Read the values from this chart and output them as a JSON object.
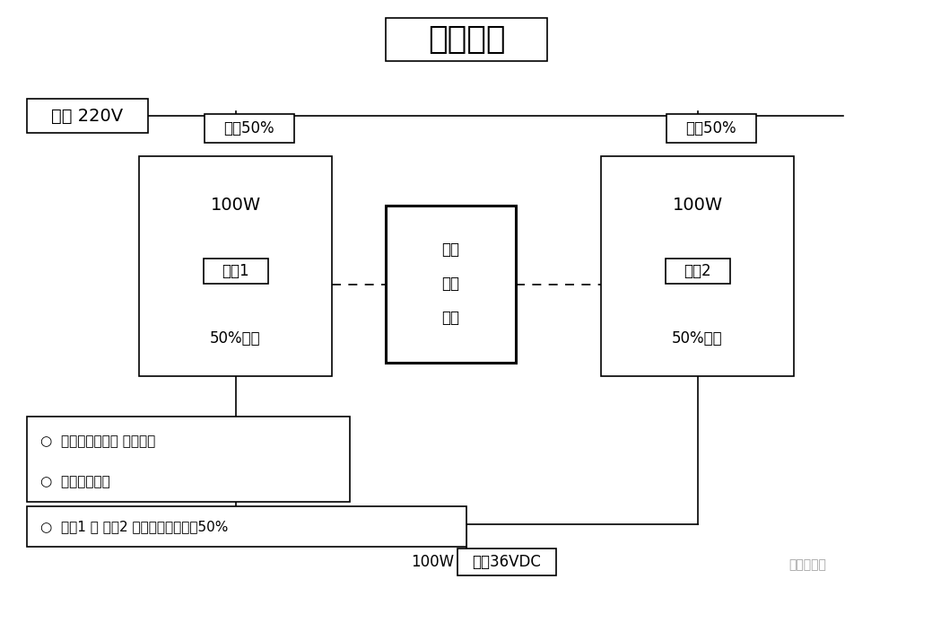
{
  "title": "冗余并联",
  "input_label": "输入 220V",
  "load_label1": "担负50%",
  "load_label2": "担负50%",
  "module1_power": "100W",
  "module1_name": "模块1",
  "module1_load": "50%负荷",
  "module2_power": "100W",
  "module2_name": "模块2",
  "module2_load": "50%负荷",
  "control_line1": "并联",
  "control_line2": "均衡",
  "control_line3": "控制",
  "output_label": "100W",
  "output_box": "输出36VDC",
  "bullet1": "○  总输出不能大于 任一模块",
  "bullet2": "○  无转换时间。",
  "bullet3": "○  模块1 和 模块2 都在工作，各担负50%",
  "watermark": "消防百事通",
  "lw_thin": 1.2,
  "lw_thick": 2.2,
  "fs_title": 26,
  "fs_label": 14,
  "fs_small": 12,
  "fs_tiny": 11
}
